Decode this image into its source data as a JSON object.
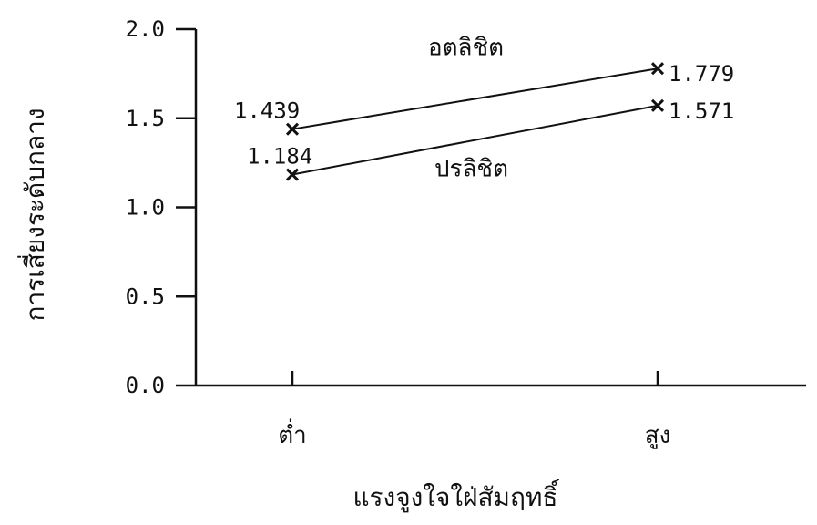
{
  "chart_data": {
    "type": "line",
    "title": "",
    "xlabel": "แรงจูงใจใฝ่สัมฤทธิ์",
    "ylabel": "การเสี่ยงระดับกลาง",
    "categories": [
      "ต่ำ",
      "สูง"
    ],
    "ylim": [
      0,
      2.0
    ],
    "yticks": [
      "0.0",
      "0.5",
      "1.0",
      "1.5",
      "2.0"
    ],
    "grid": false,
    "series": [
      {
        "name": "อตลิชิต",
        "values": [
          1.439,
          1.779
        ],
        "data_labels": [
          "1.439",
          "1.779"
        ]
      },
      {
        "name": "ปรลิชิต",
        "values": [
          1.184,
          1.571
        ],
        "data_labels": [
          "1.184",
          "1.571"
        ]
      }
    ]
  },
  "colors": {
    "ink": "#111111",
    "background": "#ffffff"
  }
}
